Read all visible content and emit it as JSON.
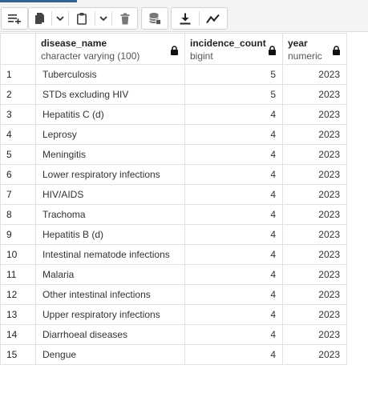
{
  "toolbar": {
    "buttons": [
      {
        "name": "add-row-button",
        "icon": "add-row-icon"
      },
      {
        "name": "copy-button",
        "icon": "copy-icon"
      },
      {
        "name": "copy-options-dropdown",
        "icon": "chevron-down-icon"
      },
      {
        "name": "paste-button",
        "icon": "paste-icon"
      },
      {
        "name": "paste-options-dropdown",
        "icon": "chevron-down-icon"
      },
      {
        "name": "delete-button",
        "icon": "trash-icon"
      },
      {
        "name": "save-data-button",
        "icon": "database-save-icon"
      },
      {
        "name": "download-button",
        "icon": "download-icon"
      },
      {
        "name": "graph-visualiser-button",
        "icon": "line-graph-icon"
      }
    ],
    "accent_color": "#326690"
  },
  "columns": [
    {
      "name": "disease_name",
      "type": "character varying (100)"
    },
    {
      "name": "incidence_count",
      "type": "bigint"
    },
    {
      "name": "year",
      "type": "numeric"
    }
  ],
  "rows": [
    {
      "n": "1",
      "disease_name": "Tuberculosis",
      "incidence_count": "5",
      "year": "2023"
    },
    {
      "n": "2",
      "disease_name": "STDs excluding HIV",
      "incidence_count": "5",
      "year": "2023"
    },
    {
      "n": "3",
      "disease_name": "Hepatitis C (d)",
      "incidence_count": "4",
      "year": "2023"
    },
    {
      "n": "4",
      "disease_name": "Leprosy",
      "incidence_count": "4",
      "year": "2023"
    },
    {
      "n": "5",
      "disease_name": "Meningitis",
      "incidence_count": "4",
      "year": "2023"
    },
    {
      "n": "6",
      "disease_name": "Lower respiratory infections",
      "incidence_count": "4",
      "year": "2023"
    },
    {
      "n": "7",
      "disease_name": "HIV/AIDS",
      "incidence_count": "4",
      "year": "2023"
    },
    {
      "n": "8",
      "disease_name": "Trachoma",
      "incidence_count": "4",
      "year": "2023"
    },
    {
      "n": "9",
      "disease_name": "Hepatitis B (d)",
      "incidence_count": "4",
      "year": "2023"
    },
    {
      "n": "10",
      "disease_name": "Intestinal nematode infections",
      "incidence_count": "4",
      "year": "2023"
    },
    {
      "n": "11",
      "disease_name": "Malaria",
      "incidence_count": "4",
      "year": "2023"
    },
    {
      "n": "12",
      "disease_name": "Other intestinal infections",
      "incidence_count": "4",
      "year": "2023"
    },
    {
      "n": "13",
      "disease_name": "Upper respiratory infections",
      "incidence_count": "4",
      "year": "2023"
    },
    {
      "n": "14",
      "disease_name": "Diarrhoeal diseases",
      "incidence_count": "4",
      "year": "2023"
    },
    {
      "n": "15",
      "disease_name": "Dengue",
      "incidence_count": "4",
      "year": "2023"
    }
  ]
}
